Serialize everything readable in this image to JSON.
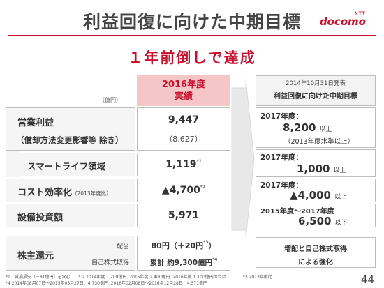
{
  "header": {
    "title": "利益回復に向けた中期目標",
    "brand_small": "NTT",
    "brand": "docomo",
    "subtitle": "１年前倒しで達成"
  },
  "table": {
    "unit": "（億円）",
    "column_header_line1": "2016年度",
    "column_header_line2": "実績",
    "rows": {
      "operating_profit": {
        "label": "営業利益",
        "sublabel": "（償却方法変更影響等 除き）",
        "value": "9,447",
        "subvalue": "（8,627）"
      },
      "smart_life": {
        "label": "スマートライフ領域",
        "value": "1,119",
        "note": "*1"
      },
      "cost": {
        "label": "コスト効率化",
        "label_small": "（2013年度比）",
        "value": "▲4,700",
        "note": "*2"
      },
      "capex": {
        "label": "設備投資額",
        "value": "5,971"
      },
      "returns": {
        "label": "株主還元",
        "dividend_label": "配当",
        "buyback_label": "自己株式取得",
        "dividend_value": "80円（＋20円",
        "dividend_note": "*3",
        "dividend_close": "）",
        "buyback_value": "累計 約9,300億円",
        "buyback_note": "*4"
      }
    }
  },
  "right_panel": {
    "date": "2014年10月31日発表",
    "name": "利益回復に向けた中期目標",
    "op_year": "2017年度：",
    "op_value": "8,200",
    "op_unit": "以上",
    "op_sub": "（2013年度水準以上）",
    "smart_year": "2017年度：",
    "smart_value": "1,000",
    "smart_unit": "以上",
    "cost_year": "2017年度：",
    "cost_value": "▲4,000",
    "cost_unit": "以上",
    "capex_year": "2015年度～2017年度",
    "capex_value": "6,500",
    "capex_unit": "以下",
    "returns_line1": "増配と自己株式取得",
    "returns_line2": "による強化"
  },
  "footnotes": {
    "line1": "*1　減損損失（－81億円）を含む　　* 2 2014年度 1,200億円, 2015年度 2,400億円, 2016年度 1,100億円の合計　　　　*3 2013年度比",
    "line2": "*4 2014年08月07日～2015年03月27日：4,730億円, 2016年02月08日～2016年12月28日：4,571億円"
  },
  "page_number": "44",
  "colors": {
    "accent": "#c8102e",
    "header_fill": "#f5c6c8",
    "arrow_fill": "#e8e8e8"
  }
}
